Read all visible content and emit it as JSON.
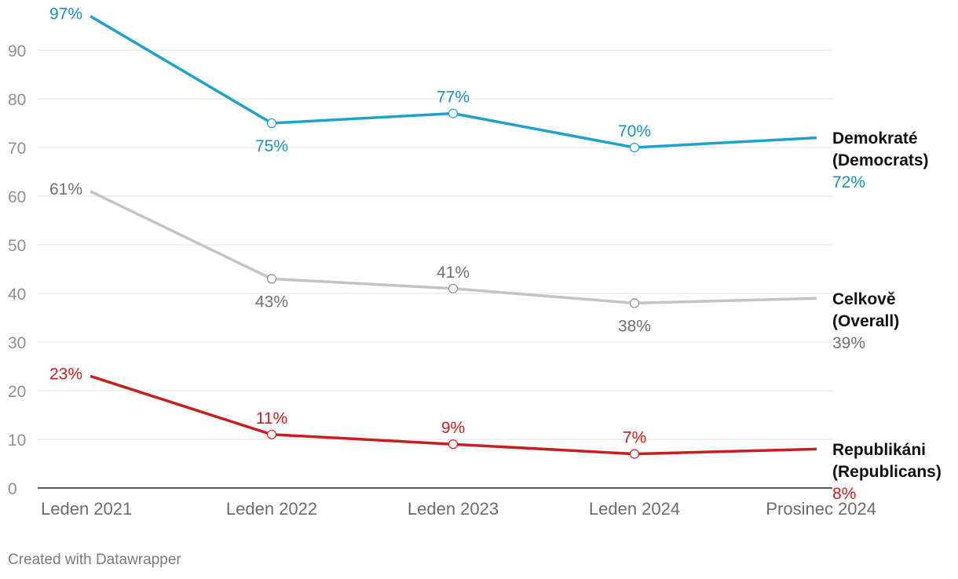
{
  "chart_data": {
    "type": "line",
    "x": [
      "Leden 2021",
      "Leden 2022",
      "Leden 2023",
      "Leden 2024",
      "Prosinec 2024"
    ],
    "ylim": [
      0,
      100
    ],
    "yticks": [
      0,
      10,
      20,
      30,
      40,
      50,
      60,
      70,
      80,
      90
    ],
    "grid": true,
    "series": [
      {
        "key": "dem",
        "name_line1": "Demokraté",
        "name_line2": "(Democrats)",
        "color": "#1fa2c9",
        "label_color": "#1c8fb2",
        "values": [
          97,
          75,
          77,
          70,
          72
        ],
        "labels": [
          "97%",
          "75%",
          "77%",
          "70%",
          "72%"
        ]
      },
      {
        "key": "all",
        "name_line1": "Celkově",
        "name_line2": "(Overall)",
        "color": "#c4c4c4",
        "label_color": "#707070",
        "values": [
          61,
          43,
          41,
          38,
          39
        ],
        "labels": [
          "61%",
          "43%",
          "41%",
          "38%",
          "39%"
        ]
      },
      {
        "key": "rep",
        "name_line1": "Republikáni",
        "name_line2": "(Republicans)",
        "color": "#c61f1f",
        "label_color": "#c61f1f",
        "values": [
          23,
          11,
          9,
          7,
          8
        ],
        "labels": [
          "23%",
          "11%",
          "9%",
          "7%",
          "8%"
        ]
      }
    ]
  },
  "footer": {
    "credit": "Created with Datawrapper"
  }
}
